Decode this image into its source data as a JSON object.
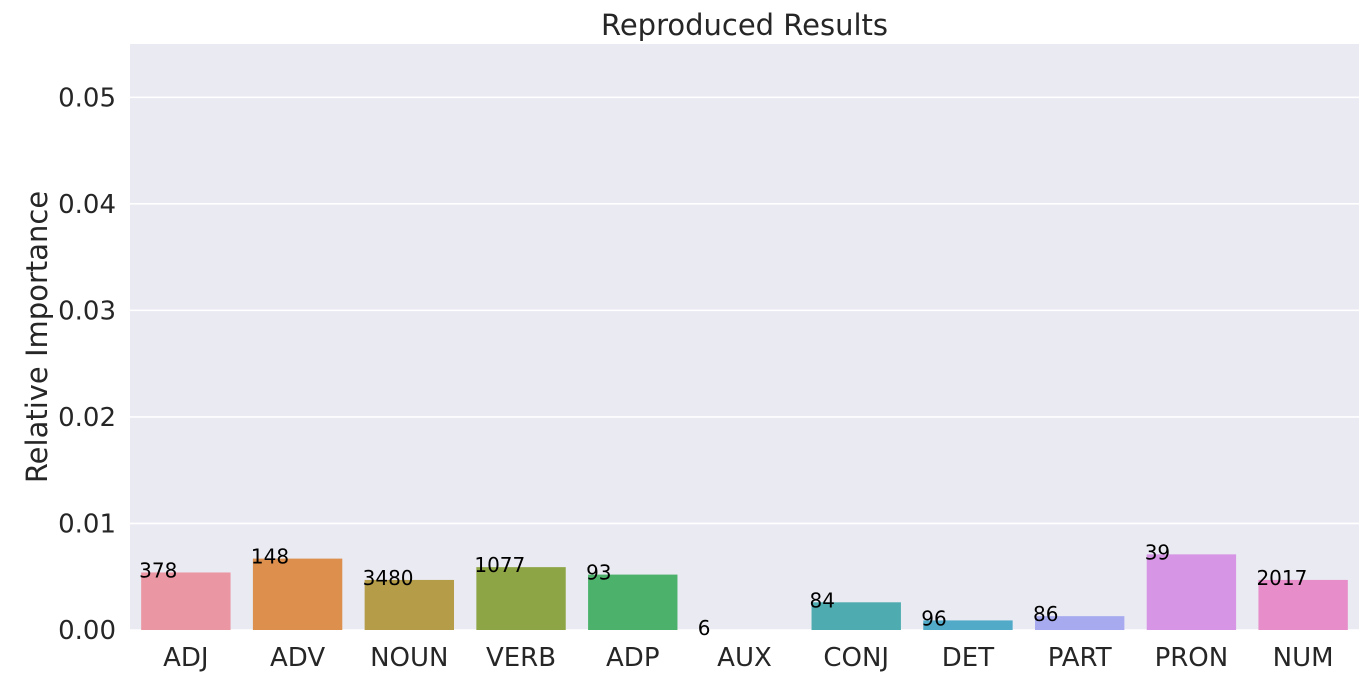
{
  "chart_data": {
    "type": "bar",
    "title": "Reproduced Results",
    "xlabel": "",
    "ylabel": "Relative Importance",
    "ylim": [
      0,
      0.055
    ],
    "yticks": [
      "0.00",
      "0.01",
      "0.02",
      "0.03",
      "0.04",
      "0.05"
    ],
    "grid": true,
    "categories": [
      "ADJ",
      "ADV",
      "NOUN",
      "VERB",
      "ADP",
      "AUX",
      "CONJ",
      "DET",
      "PART",
      "PRON",
      "NUM"
    ],
    "values": [
      0.0054,
      0.0067,
      0.0047,
      0.0059,
      0.0052,
      0.0,
      0.0026,
      0.0009,
      0.0013,
      0.0071,
      0.0047
    ],
    "data_labels": [
      "378",
      "148",
      "3480",
      "1077",
      "93",
      "6",
      "84",
      "96",
      "86",
      "39",
      "2017"
    ],
    "colors": [
      "#ea96a3",
      "#dd904e",
      "#b49c48",
      "#8ea545",
      "#4bb16b",
      "#4fae9c",
      "#4eacb0",
      "#52aac9",
      "#a8aaf0",
      "#d795e6",
      "#e78dca"
    ],
    "background": "#eaeaf2"
  }
}
